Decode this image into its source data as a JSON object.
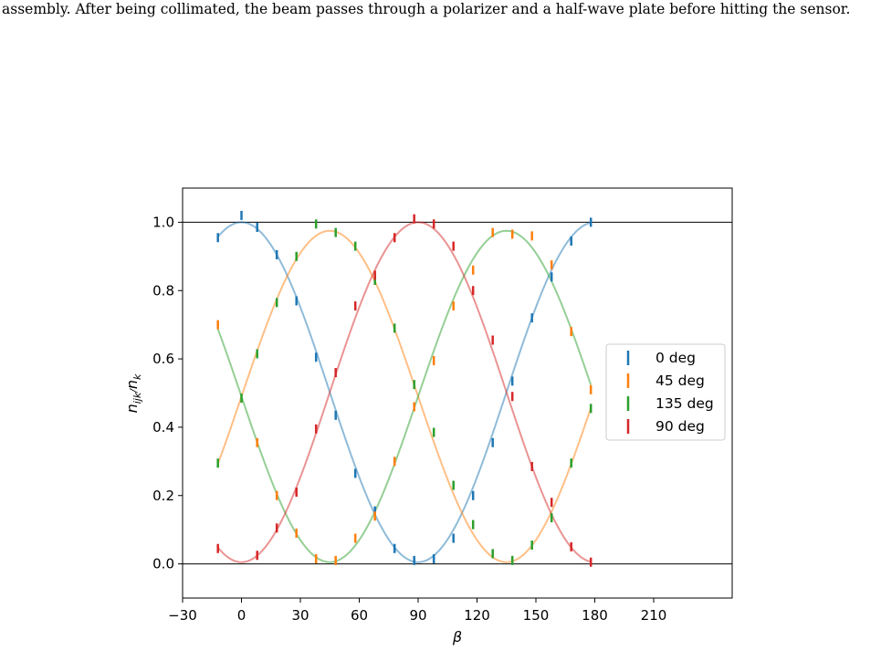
{
  "caption": "assembly. After being collimated, the beam passes through a polarizer and a half-wave plate before hitting the sensor.",
  "chart_data": {
    "type": "scatter",
    "title": "",
    "xlabel": "β",
    "ylabel": "n_ijk/n_k",
    "xlim": [
      -30,
      250
    ],
    "ylim": [
      -0.1,
      1.1
    ],
    "xticks": [
      -30,
      0,
      30,
      60,
      90,
      120,
      150,
      180,
      210
    ],
    "xtick_labels": [
      "−30",
      "0",
      "30",
      "60",
      "90",
      "120",
      "150",
      "180",
      "210"
    ],
    "yticks": [
      0.0,
      0.2,
      0.4,
      0.6,
      0.8,
      1.0
    ],
    "ytick_labels": [
      "0.0",
      "0.2",
      "0.4",
      "0.6",
      "0.8",
      "1.0"
    ],
    "hlines": [
      0.0,
      1.0
    ],
    "legend_position": "center-right",
    "x": [
      -12,
      -3,
      0,
      8,
      18,
      28,
      38,
      48,
      58,
      68,
      78,
      88,
      98,
      108,
      118,
      128,
      138,
      148,
      158,
      168,
      178
    ],
    "series": [
      {
        "name": "0 deg",
        "color": "#1f77b4",
        "values": [
          0.955,
          null,
          1.02,
          0.985,
          0.905,
          0.77,
          0.605,
          0.435,
          0.265,
          0.155,
          0.045,
          0.01,
          0.015,
          0.075,
          0.2,
          0.355,
          0.535,
          0.72,
          0.84,
          0.945,
          1.0
        ],
        "fit": {
          "amplitude": 1.0,
          "phase": 0,
          "scale": 0.995
        }
      },
      {
        "name": "45 deg",
        "color": "#ff7f0e",
        "values": [
          0.7,
          null,
          null,
          0.355,
          0.2,
          0.09,
          0.015,
          0.01,
          0.075,
          0.14,
          0.3,
          0.46,
          0.595,
          0.755,
          0.86,
          0.97,
          0.965,
          0.96,
          0.875,
          0.68,
          0.51
        ],
        "fit": {
          "amplitude": 0.975,
          "phase": 45,
          "scale": 0.97
        }
      },
      {
        "name": "135 deg",
        "color": "#2ca02c",
        "values": [
          0.295,
          null,
          0.485,
          0.615,
          0.765,
          0.9,
          0.995,
          0.97,
          0.93,
          0.83,
          0.69,
          0.525,
          0.385,
          0.23,
          0.115,
          0.03,
          0.01,
          0.055,
          0.135,
          0.295,
          0.455
        ],
        "fit": {
          "amplitude": 0.975,
          "phase": 135,
          "scale": 0.97
        }
      },
      {
        "name": "90 deg",
        "color": "#d62728",
        "values": [
          0.045,
          null,
          null,
          0.025,
          0.105,
          0.21,
          0.395,
          0.56,
          0.755,
          0.845,
          0.955,
          1.01,
          0.995,
          0.93,
          0.8,
          0.655,
          0.49,
          0.285,
          0.18,
          0.05,
          0.005
        ],
        "fit": {
          "amplitude": 1.0,
          "phase": 90,
          "scale": 0.995
        }
      }
    ]
  }
}
